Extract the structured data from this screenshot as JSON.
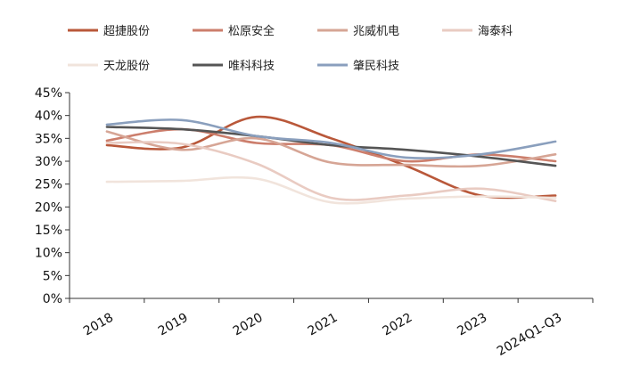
{
  "chart_data": {
    "type": "line",
    "title": "",
    "xlabel": "",
    "ylabel": "",
    "x": [
      "2018",
      "2019",
      "2020",
      "2021",
      "2022",
      "2023",
      "2024Q1-Q3"
    ],
    "ylim": [
      0,
      45
    ],
    "yticks": [
      "0%",
      "5%",
      "10%",
      "15%",
      "20%",
      "25%",
      "30%",
      "35%",
      "40%",
      "45%"
    ],
    "grid": false,
    "legend_position": "top",
    "series": [
      {
        "name": "超捷股份",
        "color": "#b9583a",
        "values": [
          33.5,
          33.0,
          39.7,
          35.0,
          29.0,
          22.5,
          22.5
        ]
      },
      {
        "name": "松原安全",
        "color": "#cc7e6c",
        "values": [
          34.5,
          37.0,
          34.0,
          33.5,
          30.0,
          31.5,
          30.0
        ]
      },
      {
        "name": "兆威机电",
        "color": "#d6a595",
        "values": [
          36.5,
          32.5,
          35.0,
          29.7,
          29.2,
          29.0,
          31.5
        ]
      },
      {
        "name": "海泰科",
        "color": "#e9cbc2",
        "values": [
          34.0,
          33.8,
          29.5,
          22.0,
          22.5,
          24.0,
          21.3
        ]
      },
      {
        "name": "天龙股份",
        "color": "#f1e4dc",
        "values": [
          25.5,
          25.7,
          26.2,
          21.0,
          21.8,
          22.3,
          22.0
        ]
      },
      {
        "name": "唯科科技",
        "color": "#555555",
        "values": [
          37.5,
          37.0,
          35.5,
          33.5,
          32.5,
          31.0,
          29.0
        ]
      },
      {
        "name": "肇民科技",
        "color": "#8a9fbd",
        "values": [
          38.0,
          39.0,
          35.5,
          34.0,
          30.8,
          31.5,
          34.3
        ]
      }
    ]
  }
}
